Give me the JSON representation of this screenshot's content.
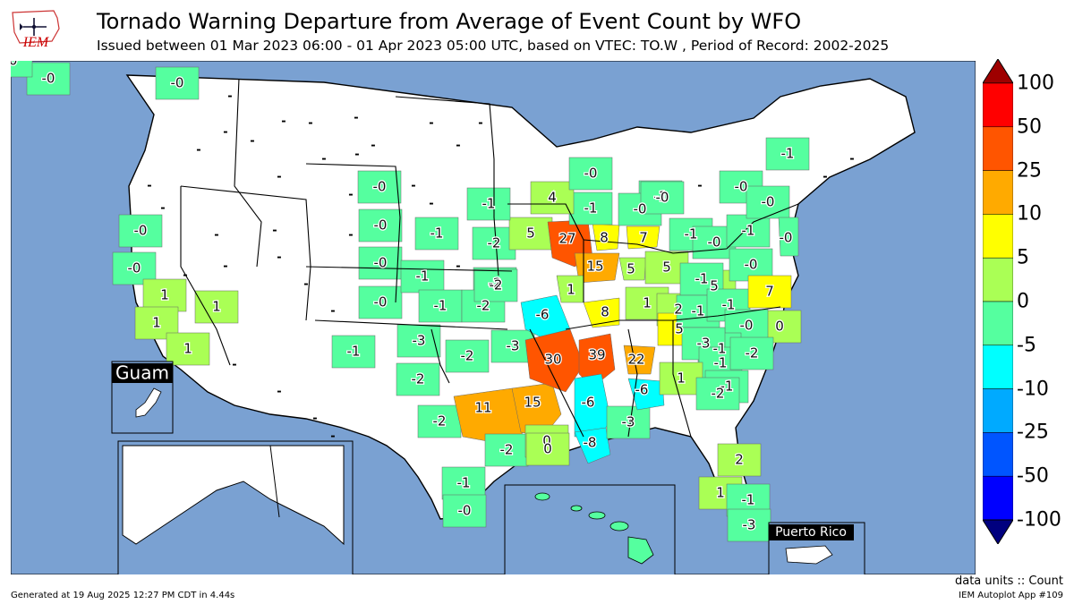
{
  "header": {
    "title": "Tornado Warning Departure from Average of Event Count by WFO",
    "subtitle": "Issued between 01 Mar 2023 06:00 - 01 Apr 2023 05:00 UTC, based on VTEC: TO.W  , Period of Record: 2002-2025",
    "logo_text": "IEM"
  },
  "colors": {
    "ocean": "#7aa1d2",
    "land": "#ffffff",
    "border": "#000000"
  },
  "colorbar": {
    "labels": [
      "100",
      "50",
      "25",
      "10",
      "5",
      "0",
      "-5",
      "-10",
      "-25",
      "-50",
      "-100"
    ],
    "bins": [
      {
        "color": "#9e0000"
      },
      {
        "color": "#ff0000"
      },
      {
        "color": "#ff5500"
      },
      {
        "color": "#ffaa00"
      },
      {
        "color": "#ffff00"
      },
      {
        "color": "#aaff55"
      },
      {
        "color": "#55ff9f"
      },
      {
        "color": "#00ffff"
      },
      {
        "color": "#00aaff"
      },
      {
        "color": "#0055ff"
      },
      {
        "color": "#0000ff"
      },
      {
        "color": "#00007f"
      }
    ]
  },
  "wfo_values": [
    {
      "label": "-0",
      "color": "#55ff9f"
    },
    {
      "label": "-0",
      "color": "#55ff9f"
    },
    {
      "label": "-0",
      "color": "#55ff9f"
    },
    {
      "label": "1",
      "color": "#aaff55"
    },
    {
      "label": "1",
      "color": "#aaff55"
    },
    {
      "label": "1",
      "color": "#aaff55"
    },
    {
      "label": "1",
      "color": "#aaff55"
    },
    {
      "label": "-1",
      "color": "#55ff9f"
    },
    {
      "label": "-0",
      "color": "#55ff9f"
    },
    {
      "label": "-0",
      "color": "#55ff9f"
    },
    {
      "label": "-0",
      "color": "#55ff9f"
    },
    {
      "label": "-0",
      "color": "#55ff9f"
    },
    {
      "label": "-1",
      "color": "#55ff9f"
    },
    {
      "label": "-1",
      "color": "#55ff9f"
    },
    {
      "label": "-1",
      "color": "#55ff9f"
    },
    {
      "label": "-2",
      "color": "#55ff9f"
    },
    {
      "label": "-2",
      "color": "#55ff9f"
    },
    {
      "label": "-2",
      "color": "#55ff9f"
    },
    {
      "label": "-2",
      "color": "#55ff9f"
    },
    {
      "label": "-3",
      "color": "#55ff9f"
    },
    {
      "label": "-2",
      "color": "#55ff9f"
    },
    {
      "label": "-3",
      "color": "#55ff9f"
    },
    {
      "label": "-2",
      "color": "#55ff9f"
    },
    {
      "label": "-2",
      "color": "#55ff9f"
    },
    {
      "label": "-1",
      "color": "#55ff9f"
    },
    {
      "label": "-0",
      "color": "#55ff9f"
    },
    {
      "label": "11",
      "color": "#ffaa00"
    },
    {
      "label": "15",
      "color": "#ffaa00"
    },
    {
      "label": "-2",
      "color": "#55ff9f"
    },
    {
      "label": "0",
      "color": "#aaff55"
    },
    {
      "label": "-6",
      "color": "#00ffff"
    },
    {
      "label": "30",
      "color": "#ff5500"
    },
    {
      "label": "39",
      "color": "#ff5500"
    },
    {
      "label": "-6",
      "color": "#00ffff"
    },
    {
      "label": "-8",
      "color": "#00ffff"
    },
    {
      "label": "-3",
      "color": "#55ff9f"
    },
    {
      "label": "22",
      "color": "#ffaa00"
    },
    {
      "label": "-6",
      "color": "#00ffff"
    },
    {
      "label": "5",
      "color": "#aaff55"
    },
    {
      "label": "27",
      "color": "#ff5500"
    },
    {
      "label": "8",
      "color": "#ffff00"
    },
    {
      "label": "15",
      "color": "#ffaa00"
    },
    {
      "label": "1",
      "color": "#aaff55"
    },
    {
      "label": "8",
      "color": "#ffff00"
    },
    {
      "label": "5",
      "color": "#aaff55"
    },
    {
      "label": "7",
      "color": "#ffff00"
    },
    {
      "label": "5",
      "color": "#aaff55"
    },
    {
      "label": "1",
      "color": "#aaff55"
    },
    {
      "label": "2",
      "color": "#aaff55"
    },
    {
      "label": "5",
      "color": "#ffff00"
    },
    {
      "label": "5",
      "color": "#aaff55"
    },
    {
      "label": "-1",
      "color": "#55ff9f"
    },
    {
      "label": "-1",
      "color": "#55ff9f"
    },
    {
      "label": "4",
      "color": "#aaff55"
    },
    {
      "label": "-0",
      "color": "#55ff9f"
    },
    {
      "label": "-1",
      "color": "#55ff9f"
    },
    {
      "label": "-0",
      "color": "#55ff9f"
    },
    {
      "label": "-0",
      "color": "#55ff9f"
    },
    {
      "label": "-1",
      "color": "#55ff9f"
    },
    {
      "label": "-0",
      "color": "#55ff9f"
    },
    {
      "label": "-1",
      "color": "#55ff9f"
    },
    {
      "label": "-1",
      "color": "#55ff9f"
    },
    {
      "label": "-1",
      "color": "#55ff9f"
    },
    {
      "label": "-1",
      "color": "#55ff9f"
    },
    {
      "label": "-1",
      "color": "#55ff9f"
    },
    {
      "label": "-0",
      "color": "#55ff9f"
    },
    {
      "label": "-0",
      "color": "#55ff9f"
    },
    {
      "label": "-0",
      "color": "#55ff9f"
    },
    {
      "label": "-0",
      "color": "#55ff9f"
    },
    {
      "label": "7",
      "color": "#ffff00"
    },
    {
      "label": "0",
      "color": "#aaff55"
    },
    {
      "label": "-0",
      "color": "#55ff9f"
    },
    {
      "label": "-1",
      "color": "#55ff9f"
    },
    {
      "label": "-3",
      "color": "#55ff9f"
    },
    {
      "label": "-1",
      "color": "#55ff9f"
    },
    {
      "label": "-2",
      "color": "#55ff9f"
    },
    {
      "label": "1",
      "color": "#aaff55"
    },
    {
      "label": "-1",
      "color": "#55ff9f"
    },
    {
      "label": "-2",
      "color": "#55ff9f"
    },
    {
      "label": "2",
      "color": "#aaff55"
    },
    {
      "label": "1",
      "color": "#aaff55"
    },
    {
      "label": "-1",
      "color": "#55ff9f"
    },
    {
      "label": "-3",
      "color": "#55ff9f"
    },
    {
      "label": "0",
      "color": "#aaff55"
    },
    {
      "label": "-2",
      "color": "#55ff9f"
    },
    {
      "label": "-0",
      "color": "#55ff9f"
    },
    {
      "label": "-0",
      "color": "#55ff9f"
    }
  ],
  "no_data_mark": "-",
  "insets": {
    "guam": "Guam",
    "puerto_rico": "Puerto Rico"
  },
  "footer": {
    "units": "data units :: Count",
    "generated": "Generated at 19 Aug 2025 12:27 PM CDT in 4.44s",
    "app": "IEM Autoplot App #109"
  }
}
